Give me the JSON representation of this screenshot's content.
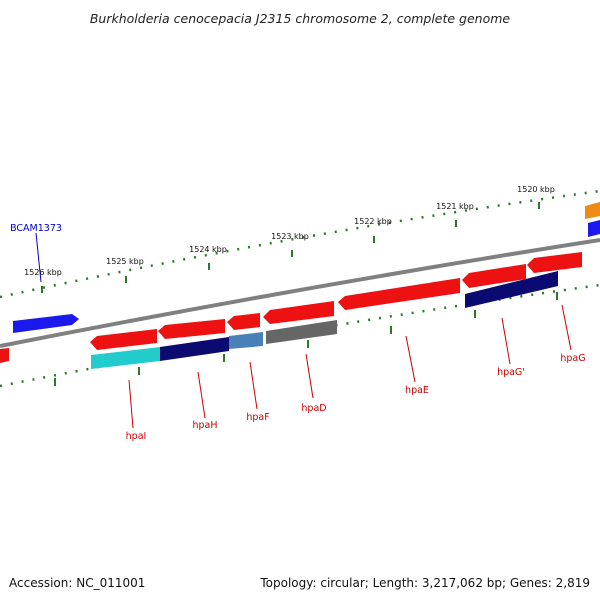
{
  "title": "Burkholderia cenocepacia J2315 chromosome 2, complete genome",
  "footer": {
    "accession": "Accession: NC_011001",
    "stats": "Topology: circular; Length: 3,217,062 bp; Genes: 2,819"
  },
  "ruler_labels": [
    "1526 kbp",
    "1525 kbp",
    "1524 kbp",
    "1523 kbp",
    "1522 kbp",
    "1521 kbp",
    "1520 kbp"
  ],
  "gene_labels": [
    "hpaI",
    "hpaH",
    "hpaF",
    "hpaD",
    "hpaE",
    "hpaG'",
    "hpaG"
  ],
  "locus_label": "BCAM1373",
  "colors": {
    "backbone": "#808080",
    "gene_red": "#ee1111",
    "gene_blue": "#1a1aee",
    "gene_navy": "#0a0a70",
    "gene_cyan": "#22cccc",
    "gene_steel": "#4a80b8",
    "gene_gray": "#666666",
    "gene_orange": "#f08a10",
    "tick_green": "#2a7a2a",
    "label_red": "#cc0000",
    "label_blue": "#0000cc"
  }
}
